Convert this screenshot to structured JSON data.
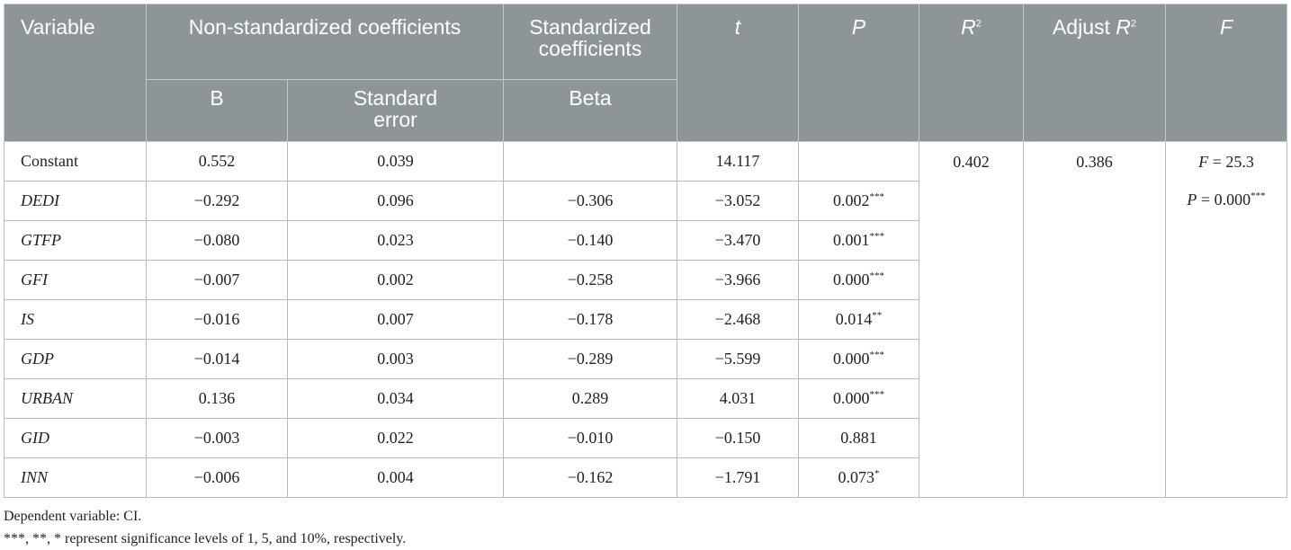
{
  "headers": {
    "variable": "Variable",
    "non_std": "Non-standardized coefficients",
    "std": "Standardized coefficients",
    "t": "t",
    "p": "P",
    "r2": "R",
    "r2_sup": "2",
    "adj_r2_prefix": "Adjust ",
    "adj_r2": "R",
    "adj_r2_sup": "2",
    "f": "F",
    "b": "B",
    "se": "Standard error",
    "beta": "Beta"
  },
  "rows": [
    {
      "variable": "Constant",
      "b": "0.552",
      "se": "0.039",
      "beta": "",
      "t": "14.117",
      "p": "",
      "p_sig": ""
    },
    {
      "variable": "DEDI",
      "b": "−0.292",
      "se": "0.096",
      "beta": "−0.306",
      "t": "−3.052",
      "p": "0.002",
      "p_sig": "***"
    },
    {
      "variable": "GTFP",
      "b": "−0.080",
      "se": "0.023",
      "beta": "−0.140",
      "t": "−3.470",
      "p": "0.001",
      "p_sig": "***"
    },
    {
      "variable": "GFI",
      "b": "−0.007",
      "se": "0.002",
      "beta": "−0.258",
      "t": "−3.966",
      "p": "0.000",
      "p_sig": "***"
    },
    {
      "variable": "IS",
      "b": "−0.016",
      "se": "0.007",
      "beta": "−0.178",
      "t": "−2.468",
      "p": "0.014",
      "p_sig": "**"
    },
    {
      "variable": "GDP",
      "b": "−0.014",
      "se": "0.003",
      "beta": "−0.289",
      "t": "−5.599",
      "p": "0.000",
      "p_sig": "***"
    },
    {
      "variable": "URBAN",
      "b": "0.136",
      "se": "0.034",
      "beta": "0.289",
      "t": "4.031",
      "p": "0.000",
      "p_sig": "***"
    },
    {
      "variable": "GID",
      "b": "−0.003",
      "se": "0.022",
      "beta": "−0.010",
      "t": "−0.150",
      "p": "0.881",
      "p_sig": ""
    },
    {
      "variable": "INN",
      "b": "−0.006",
      "se": "0.004",
      "beta": "−0.162",
      "t": "−1.791",
      "p": "0.073",
      "p_sig": "*"
    }
  ],
  "summary": {
    "r2": "0.402",
    "adj_r2": "0.386",
    "f_label": "F",
    "f_value": " = 25.3",
    "fp_label": "P",
    "fp_value": " = 0.000",
    "fp_sig": "***"
  },
  "notes": {
    "dependent": "Dependent variable: CI.",
    "significance": "***, **, * represent significance levels of 1, 5, and 10%, respectively."
  },
  "colors": {
    "header_bg": "#8e9598",
    "header_text": "#ffffff",
    "border": "#b8bcbe"
  }
}
